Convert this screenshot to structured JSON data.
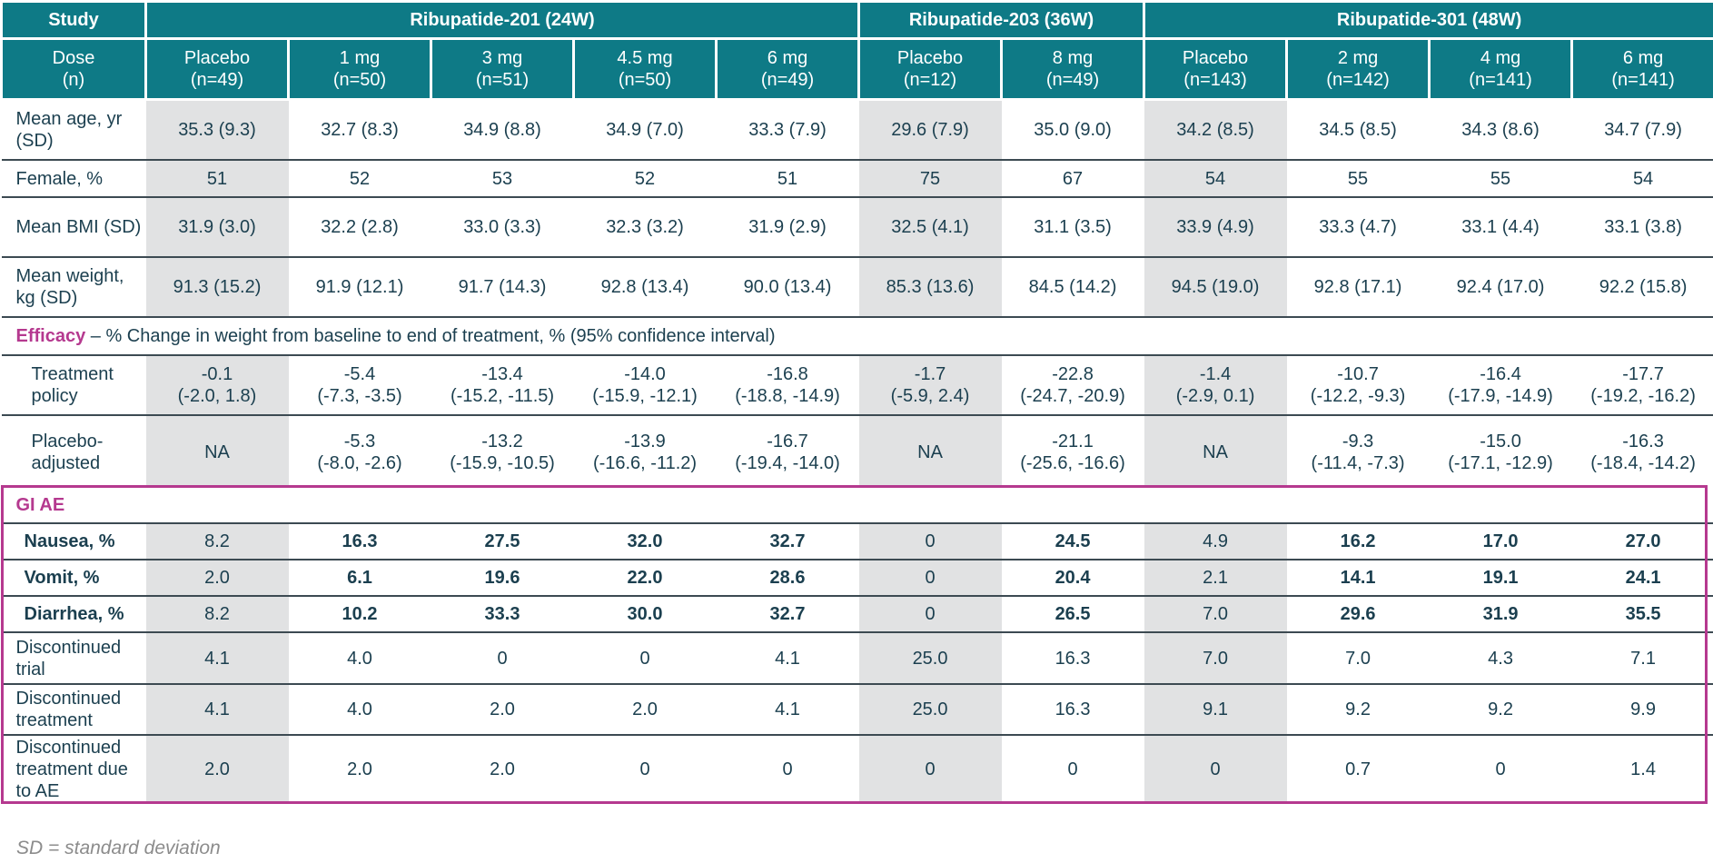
{
  "header": {
    "study_label": "Study",
    "dose_label": "Dose",
    "n_label": "(n)",
    "studies": [
      {
        "name": "Ribupatide-201 (24W)"
      },
      {
        "name": "Ribupatide-203 (36W)"
      },
      {
        "name": "Ribupatide-301 (48W)"
      }
    ],
    "arms": [
      {
        "dose": "Placebo",
        "n": "(n=49)"
      },
      {
        "dose": "1 mg",
        "n": "(n=50)"
      },
      {
        "dose": "3 mg",
        "n": "(n=51)"
      },
      {
        "dose": "4.5 mg",
        "n": "(n=50)"
      },
      {
        "dose": "6 mg",
        "n": "(n=49)"
      },
      {
        "dose": "Placebo",
        "n": "(n=12)"
      },
      {
        "dose": "8 mg",
        "n": "(n=49)"
      },
      {
        "dose": "Placebo",
        "n": "(n=143)"
      },
      {
        "dose": "2 mg",
        "n": "(n=142)"
      },
      {
        "dose": "4 mg",
        "n": "(n=141)"
      },
      {
        "dose": "6 mg",
        "n": "(n=141)"
      }
    ]
  },
  "rows": {
    "age": {
      "label1": "Mean age, yr",
      "label2": "(SD)",
      "values": [
        "35.3 (9.3)",
        "32.7 (8.3)",
        "34.9 (8.8)",
        "34.9 (7.0)",
        "33.3 (7.9)",
        "29.6 (7.9)",
        "35.0 (9.0)",
        "34.2 (8.5)",
        "34.5 (8.5)",
        "34.3 (8.6)",
        "34.7 (7.9)"
      ]
    },
    "female": {
      "label": "Female, %",
      "values": [
        "51",
        "52",
        "53",
        "52",
        "51",
        "75",
        "67",
        "54",
        "55",
        "55",
        "54"
      ]
    },
    "bmi": {
      "label": "Mean BMI (SD)",
      "values": [
        "31.9 (3.0)",
        "32.2 (2.8)",
        "33.0 (3.3)",
        "32.3 (3.2)",
        "31.9 (2.9)",
        "32.5 (4.1)",
        "31.1 (3.5)",
        "33.9 (4.9)",
        "33.3 (4.7)",
        "33.1 (4.4)",
        "33.1 (3.8)"
      ]
    },
    "weight": {
      "label1": "Mean weight,",
      "label2": "kg (SD)",
      "values": [
        "91.3 (15.2)",
        "91.9 (12.1)",
        "91.7 (14.3)",
        "92.8 (13.4)",
        "90.0 (13.4)",
        "85.3 (13.6)",
        "84.5 (14.2)",
        "94.5 (19.0)",
        "92.8 (17.1)",
        "92.4 (17.0)",
        "92.2 (15.8)"
      ]
    }
  },
  "efficacy": {
    "title": "Efficacy",
    "desc": " – % Change in weight from baseline to end of treatment, % (95% confidence interval)",
    "treatment_policy": {
      "label1": "Treatment",
      "label2": "policy",
      "values": [
        {
          "a": "-0.1",
          "b": "(-2.0, 1.8)"
        },
        {
          "a": "-5.4",
          "b": "(-7.3, -3.5)"
        },
        {
          "a": "-13.4",
          "b": "(-15.2, -11.5)"
        },
        {
          "a": "-14.0",
          "b": "(-15.9, -12.1)"
        },
        {
          "a": "-16.8",
          "b": "(-18.8, -14.9)"
        },
        {
          "a": "-1.7",
          "b": "(-5.9, 2.4)"
        },
        {
          "a": "-22.8",
          "b": "(-24.7, -20.9)"
        },
        {
          "a": "-1.4",
          "b": "(-2.9, 0.1)"
        },
        {
          "a": "-10.7",
          "b": "(-12.2, -9.3)"
        },
        {
          "a": "-16.4",
          "b": "(-17.9, -14.9)"
        },
        {
          "a": "-17.7",
          "b": "(-19.2, -16.2)"
        }
      ]
    },
    "placebo_adjusted": {
      "label1": "Placebo-",
      "label2": "adjusted",
      "values": [
        {
          "a": "NA",
          "b": ""
        },
        {
          "a": "-5.3",
          "b": "(-8.0, -2.6)"
        },
        {
          "a": "-13.2",
          "b": "(-15.9, -10.5)"
        },
        {
          "a": "-13.9",
          "b": "(-16.6, -11.2)"
        },
        {
          "a": "-16.7",
          "b": "(-19.4, -14.0)"
        },
        {
          "a": "NA",
          "b": ""
        },
        {
          "a": "-21.1",
          "b": "(-25.6, -16.6)"
        },
        {
          "a": "NA",
          "b": ""
        },
        {
          "a": "-9.3",
          "b": "(-11.4, -7.3)"
        },
        {
          "a": "-15.0",
          "b": "(-17.1, -12.9)"
        },
        {
          "a": "-16.3",
          "b": "(-18.4, -14.2)"
        }
      ]
    }
  },
  "gi": {
    "title": "GI AE",
    "nausea": {
      "label": "Nausea, %",
      "values": [
        "8.2",
        "16.3",
        "27.5",
        "32.0",
        "32.7",
        "0",
        "24.5",
        "4.9",
        "16.2",
        "17.0",
        "27.0"
      ]
    },
    "vomit": {
      "label": "Vomit, %",
      "values": [
        "2.0",
        "6.1",
        "19.6",
        "22.0",
        "28.6",
        "0",
        "20.4",
        "2.1",
        "14.1",
        "19.1",
        "24.1"
      ]
    },
    "diarrhea": {
      "label": "Diarrhea, %",
      "values": [
        "8.2",
        "10.2",
        "33.3",
        "30.0",
        "32.7",
        "0",
        "26.5",
        "7.0",
        "29.6",
        "31.9",
        "35.5"
      ]
    },
    "disc_trial": {
      "label1": "Discontinued",
      "label2": "trial",
      "values": [
        "4.1",
        "4.0",
        "0",
        "0",
        "4.1",
        "25.0",
        "16.3",
        "7.0",
        "7.0",
        "4.3",
        "7.1"
      ]
    },
    "disc_treatment": {
      "label1": "Discontinued",
      "label2": "treatment",
      "values": [
        "4.1",
        "4.0",
        "2.0",
        "2.0",
        "4.1",
        "25.0",
        "16.3",
        "9.1",
        "9.2",
        "9.2",
        "9.9"
      ]
    },
    "disc_ae": {
      "label1": "Discontinued",
      "label2": "treatment due",
      "label3": "to AE",
      "values": [
        "2.0",
        "2.0",
        "2.0",
        "0",
        "0",
        "0",
        "0",
        "0",
        "0.7",
        "0",
        "1.4"
      ]
    }
  },
  "footnote": "SD = standard deviation",
  "colors": {
    "header_teal": "#0e7a86",
    "accent_magenta": "#b5398f",
    "placebo_gray": "#e1e2e3",
    "text": "#1b3f4f"
  }
}
